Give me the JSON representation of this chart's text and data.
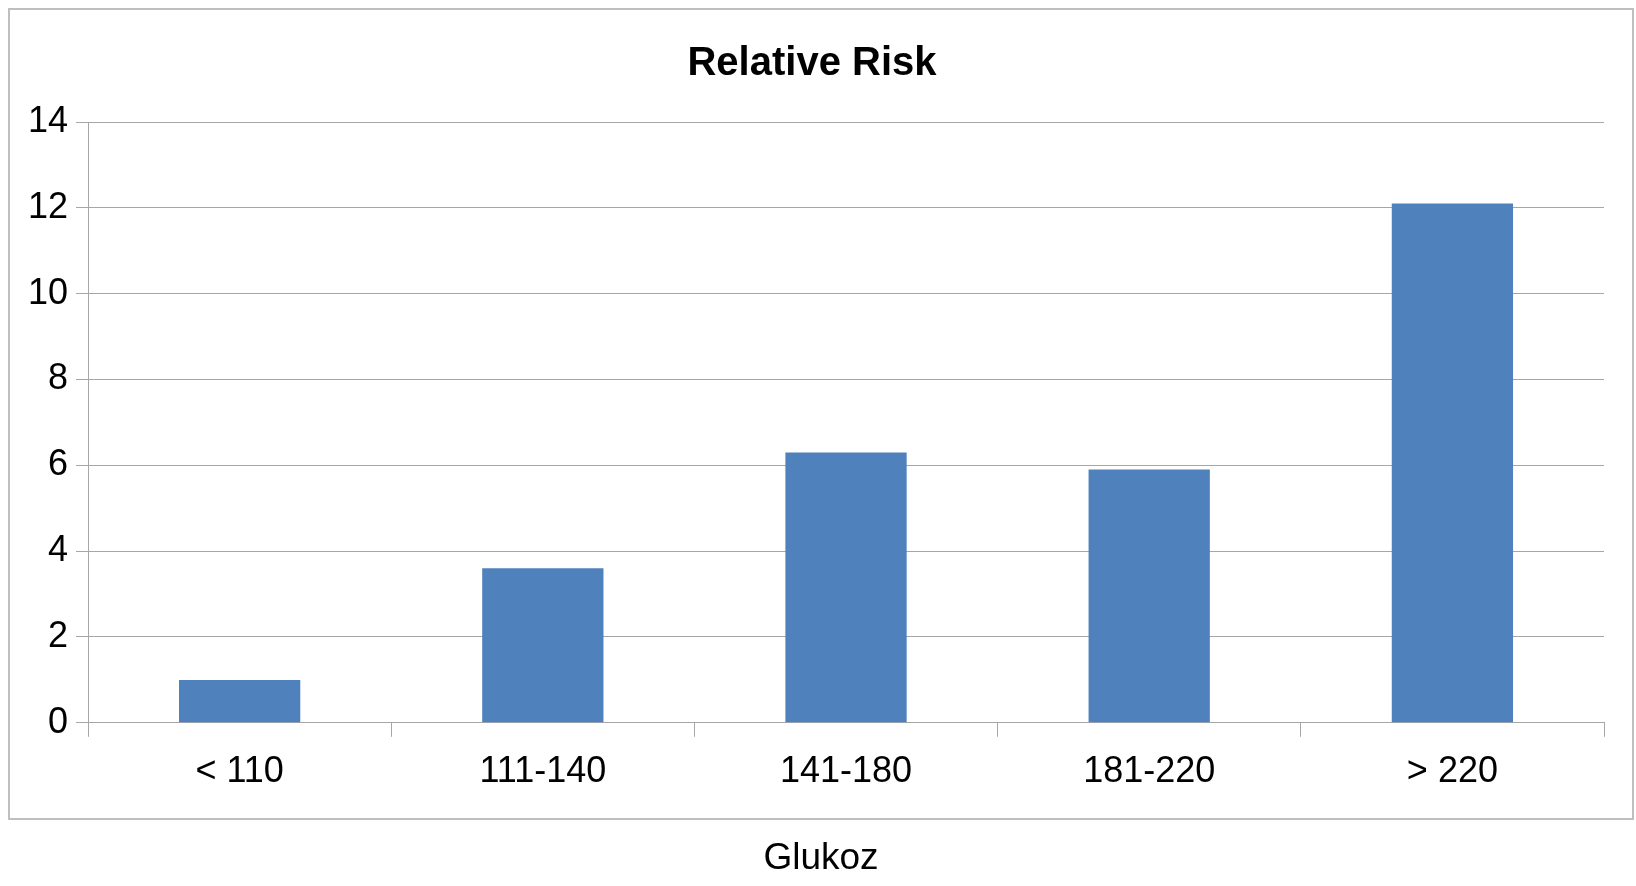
{
  "chart_data": {
    "type": "bar",
    "title": "Relative Risk",
    "xlabel": "Glukoz",
    "categories": [
      "< 110",
      "111-140",
      "141-180",
      "181-220",
      "> 220"
    ],
    "values": [
      1.0,
      3.6,
      6.3,
      5.9,
      12.1
    ],
    "color": "#4f81bd",
    "ylim": [
      0,
      14
    ],
    "yticks": [
      0,
      2,
      4,
      6,
      8,
      10,
      12,
      14
    ],
    "grid": "y",
    "legend": false
  }
}
